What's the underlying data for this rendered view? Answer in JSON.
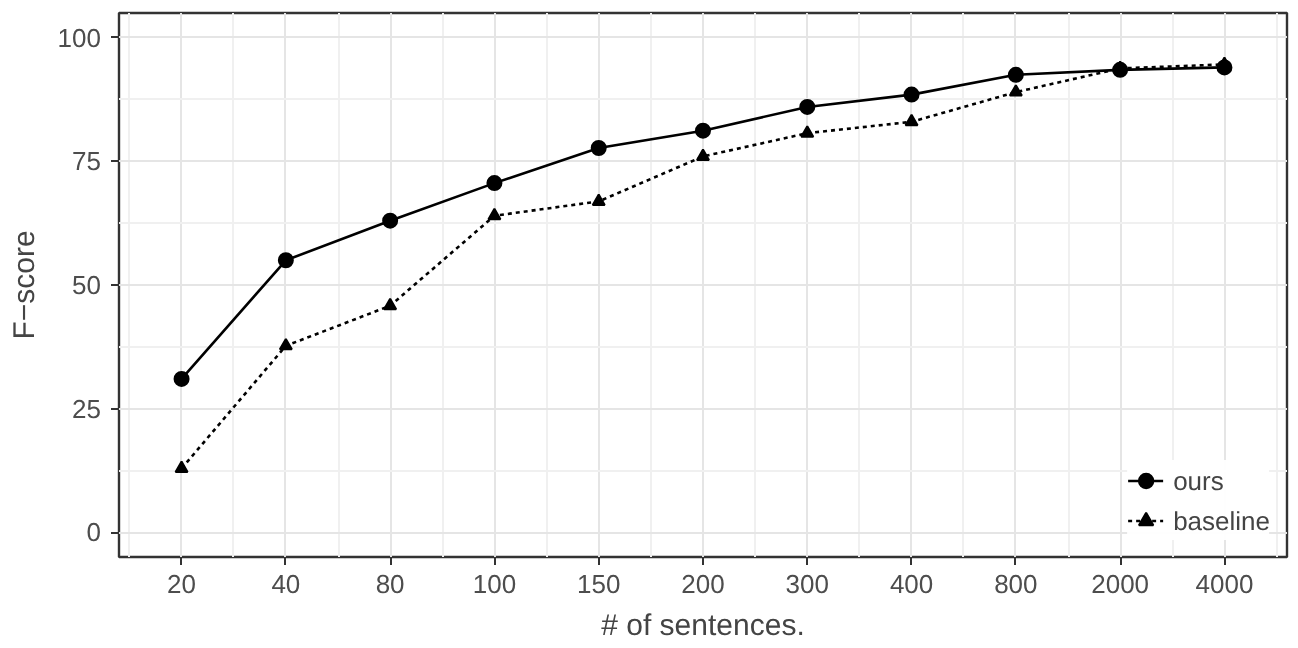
{
  "chart_data": {
    "type": "line",
    "xlabel": "# of sentences.",
    "ylabel": "F−score",
    "categories": [
      "20",
      "40",
      "80",
      "100",
      "150",
      "200",
      "300",
      "400",
      "800",
      "2000",
      "4000"
    ],
    "ylim": [
      -5,
      105
    ],
    "yticks": [
      0,
      25,
      50,
      75,
      100
    ],
    "grid": true,
    "legend": "bottom right",
    "series": [
      {
        "name": "ours",
        "color": "#000000",
        "marker": "circle",
        "line_style": "solid",
        "values": [
          31.0,
          55.0,
          63.0,
          70.6,
          77.7,
          81.2,
          86.0,
          88.5,
          92.5,
          93.5,
          94.0
        ]
      },
      {
        "name": "baseline",
        "color": "#000000",
        "marker": "triangle",
        "line_style": "dotted",
        "values": [
          12.9,
          37.7,
          45.8,
          64.0,
          66.9,
          76.0,
          80.7,
          83.0,
          89.0,
          93.8,
          94.6
        ]
      }
    ]
  }
}
